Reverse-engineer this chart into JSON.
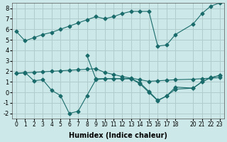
{
  "xlabel": "Humidex (Indice chaleur)",
  "ylabel": "",
  "background_color": "#cce8e8",
  "grid_color": "#b0cccc",
  "line_color": "#1a6b6b",
  "xlim": [
    -0.5,
    23.5
  ],
  "ylim": [
    -2.5,
    8.5
  ],
  "xticks": [
    0,
    1,
    2,
    3,
    4,
    5,
    6,
    7,
    8,
    9,
    10,
    11,
    12,
    13,
    14,
    15,
    16,
    17,
    18,
    20,
    21,
    22,
    23
  ],
  "yticks": [
    -2,
    -1,
    0,
    1,
    2,
    3,
    4,
    5,
    6,
    7,
    8
  ],
  "series": [
    {
      "x": [
        0,
        1,
        2,
        3,
        4,
        5,
        6,
        7,
        8,
        9,
        10,
        11,
        12,
        13,
        14,
        15,
        16,
        17,
        18,
        20,
        21,
        22,
        23
      ],
      "y": [
        5.8,
        4.9,
        5.2,
        5.5,
        5.7,
        6.0,
        6.3,
        6.6,
        6.9,
        7.2,
        7.0,
        7.2,
        7.5,
        7.7,
        7.7,
        7.7,
        4.4,
        4.5,
        5.5,
        6.5,
        7.5,
        8.2,
        8.5
      ]
    },
    {
      "x": [
        0,
        1,
        2,
        3,
        4,
        5,
        6,
        7,
        8,
        9,
        10,
        11,
        12,
        13,
        14,
        15,
        16,
        17,
        18,
        20,
        21,
        22,
        23
      ],
      "y": [
        1.8,
        1.9,
        1.1,
        1.2,
        0.2,
        -0.3,
        -2.0,
        -1.8,
        -0.3,
        1.2,
        1.3,
        1.3,
        1.3,
        1.3,
        0.8,
        0.0,
        -0.8,
        -0.35,
        0.3,
        0.4,
        1.0,
        1.4,
        1.6
      ]
    },
    {
      "x": [
        0,
        1,
        2,
        3,
        4,
        5,
        6,
        7,
        8,
        9,
        10,
        11,
        12,
        13,
        14,
        15,
        16,
        17,
        18,
        20,
        21,
        22,
        23
      ],
      "y": [
        1.8,
        1.85,
        1.9,
        1.95,
        2.0,
        2.05,
        2.1,
        2.15,
        2.2,
        2.25,
        1.9,
        1.7,
        1.5,
        1.35,
        1.2,
        1.05,
        1.1,
        1.15,
        1.2,
        1.25,
        1.3,
        1.35,
        1.4
      ]
    },
    {
      "x": [
        8,
        9,
        10,
        11,
        12,
        13,
        14,
        15,
        16,
        17,
        18,
        20,
        21,
        22,
        23
      ],
      "y": [
        3.5,
        1.3,
        1.3,
        1.3,
        1.3,
        1.3,
        0.9,
        0.1,
        -0.75,
        -0.35,
        0.5,
        0.4,
        1.0,
        1.4,
        1.6
      ]
    }
  ]
}
